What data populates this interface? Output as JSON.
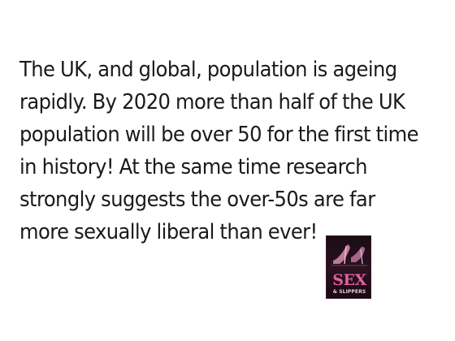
{
  "slide": {
    "body_text": "The UK, and global, population is ageing rapidly. By 2020 more than half of the UK population will be over 50 for the first time in history! At the same time research strongly suggests the over-50s are far more sexually liberal than ever!"
  },
  "logo": {
    "word": "SEX",
    "sub": "& SLIPPERS",
    "icon": "high-heel-shoes-icon",
    "accent_color": "#e35fa0"
  }
}
